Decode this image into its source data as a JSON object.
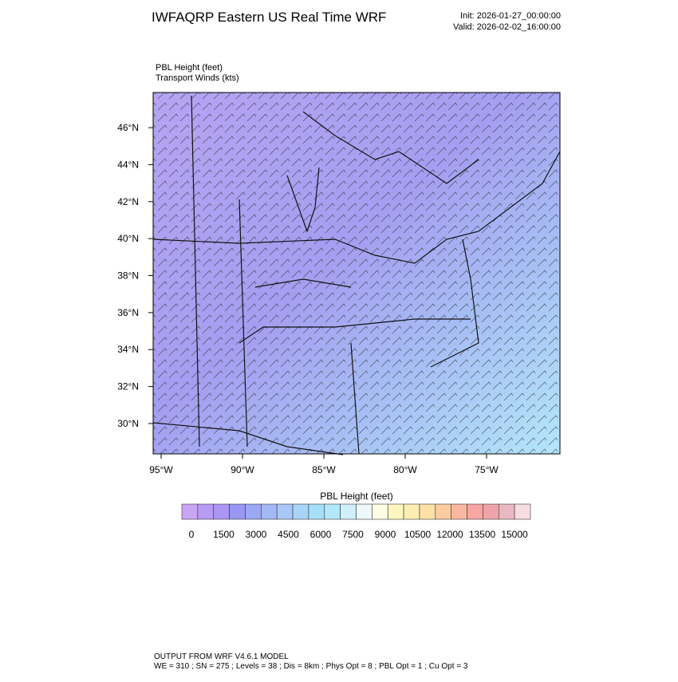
{
  "header": {
    "title": "IWFAQRP Eastern US Real Time WRF",
    "init": "Init: 2026-01-27_00:00:00",
    "valid": "Valid: 2026-02-02_16:00:00"
  },
  "map": {
    "field_label": "PBL Height   (feet)",
    "vector_label": "Transport Winds   (kts)",
    "xlim": [
      -95.49,
      -70.49
    ],
    "ylim": [
      28.36,
      47.9
    ],
    "xticks": [
      {
        "value": -95,
        "label": "95°W"
      },
      {
        "value": -90,
        "label": "90°W"
      },
      {
        "value": -85,
        "label": "85°W"
      },
      {
        "value": -80,
        "label": "80°W"
      },
      {
        "value": -75,
        "label": "75°W"
      }
    ],
    "yticks": [
      {
        "value": 30,
        "label": "30°N"
      },
      {
        "value": 32,
        "label": "32°N"
      },
      {
        "value": 34,
        "label": "34°N"
      },
      {
        "value": 36,
        "label": "36°N"
      },
      {
        "value": 38,
        "label": "38°N"
      },
      {
        "value": 40,
        "label": "40°N"
      },
      {
        "value": 42,
        "label": "42°N"
      },
      {
        "value": 44,
        "label": "44°N"
      },
      {
        "value": 46,
        "label": "46°N"
      }
    ]
  },
  "colorbar": {
    "title": "PBL Height  (feet)",
    "colors": [
      "#c9a6f5",
      "#b99af5",
      "#a996f5",
      "#9a96f3",
      "#9ba8f3",
      "#a4b8f5",
      "#a9c8f7",
      "#a8d4f8",
      "#a4e0fa",
      "#b2e8fb",
      "#cfeffb",
      "#ecf8fb",
      "#fefee6",
      "#fdf6c0",
      "#fceeb0",
      "#fde0a6",
      "#fccca0",
      "#fbb8a0",
      "#f8a6a2",
      "#f0a4aa",
      "#eab8c0",
      "#f7dde3"
    ],
    "ticks": [
      0,
      1500,
      3000,
      4500,
      6000,
      7500,
      9000,
      10500,
      12000,
      13500,
      15000
    ]
  },
  "footer": {
    "line1": "OUTPUT FROM WRF V4.6.1 MODEL",
    "line2": "WE = 310 ; SN = 275 ; Levels = 38 ; Dis = 8km ; Phys Opt = 8 ; PBL Opt = 1 ; Cu Opt = 3"
  }
}
